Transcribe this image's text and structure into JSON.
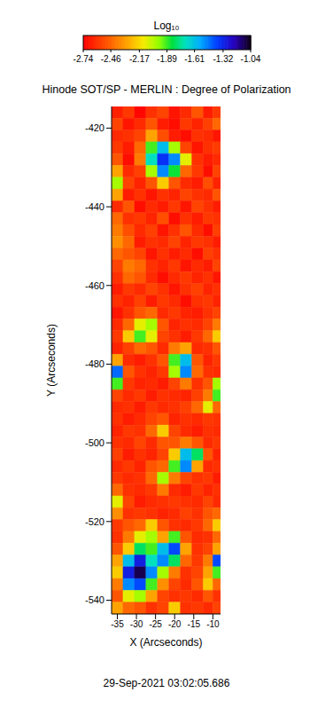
{
  "chart_data": {
    "type": "heatmap",
    "title": "Hinode SOT/SP - MERLIN : Degree of Polarization",
    "annotation": "29-Sep-2021 03:02:05.686",
    "x_label": "X (Arcseconds)",
    "y_label": "Y (Arcseconds)",
    "xlim": [
      -36.5,
      -8
    ],
    "ylim": [
      -543.5,
      -414.5
    ],
    "xticks": [
      -35,
      -30,
      -25,
      -20,
      -15,
      -10
    ],
    "yticks": [
      -420,
      -440,
      -460,
      -480,
      -500,
      -520,
      -540
    ],
    "x": [
      -35,
      -32,
      -29,
      -26,
      -23,
      -20,
      -17,
      -14,
      -11,
      -9
    ],
    "y": [
      -416,
      -419,
      -422,
      -425,
      -428,
      -431,
      -434,
      -437,
      -440,
      -443,
      -446,
      -449,
      -452,
      -455,
      -458,
      -461,
      -464,
      -467,
      -470,
      -473,
      -476,
      -479,
      -482,
      -485,
      -488,
      -491,
      -494,
      -497,
      -500,
      -503,
      -506,
      -509,
      -512,
      -515,
      -518,
      -521,
      -524,
      -527,
      -530,
      -533,
      -536,
      -539,
      -542
    ],
    "z": [
      [
        -2.65,
        -2.58,
        -2.72,
        -2.6,
        -2.55,
        -2.68,
        -2.62,
        -2.5,
        -2.66,
        -2.58
      ],
      [
        -2.55,
        -2.68,
        -2.62,
        -2.5,
        -2.66,
        -2.7,
        -2.58,
        -2.64,
        -2.56,
        -2.45
      ],
      [
        -2.62,
        -2.6,
        -2.55,
        -2.3,
        -2.52,
        -2.66,
        -2.7,
        -2.6,
        -2.62,
        -2.68
      ],
      [
        -2.58,
        -2.66,
        -2.45,
        -1.9,
        -1.6,
        -2.0,
        -2.55,
        -2.68,
        -2.6,
        -2.57
      ],
      [
        -2.5,
        -2.7,
        -2.4,
        -1.7,
        -1.35,
        -1.5,
        -2.1,
        -2.6,
        -2.66,
        -2.62
      ],
      [
        -2.3,
        -2.62,
        -2.56,
        -2.0,
        -1.5,
        -1.85,
        -2.45,
        -2.58,
        -2.7,
        -2.55
      ],
      [
        -2.0,
        -2.55,
        -2.64,
        -2.5,
        -2.2,
        -2.5,
        -2.62,
        -2.66,
        -2.52,
        -2.64
      ],
      [
        -2.3,
        -2.66,
        -2.6,
        -2.68,
        -2.6,
        -2.64,
        -2.55,
        -2.6,
        -2.62,
        -2.5
      ],
      [
        -2.62,
        -2.5,
        -2.7,
        -2.62,
        -2.66,
        -2.58,
        -2.68,
        -2.55,
        -2.6,
        -2.66
      ],
      [
        -2.45,
        -2.6,
        -2.58,
        -2.64,
        -2.52,
        -2.7,
        -2.6,
        -2.66,
        -2.58,
        -2.6
      ],
      [
        -2.4,
        -2.52,
        -2.62,
        -2.56,
        -2.68,
        -2.6,
        -2.5,
        -2.62,
        -2.7,
        -2.56
      ],
      [
        -2.35,
        -2.45,
        -2.66,
        -2.6,
        -2.62,
        -2.55,
        -2.64,
        -2.58,
        -2.6,
        -2.66
      ],
      [
        -2.45,
        -2.5,
        -2.55,
        -2.68,
        -2.6,
        -2.66,
        -2.62,
        -2.7,
        -2.56,
        -2.6
      ],
      [
        -2.55,
        -2.4,
        -2.45,
        -2.6,
        -2.64,
        -2.58,
        -2.68,
        -2.62,
        -2.66,
        -2.55
      ],
      [
        -2.6,
        -2.45,
        -2.5,
        -2.62,
        -2.7,
        -2.62,
        -2.58,
        -2.64,
        -2.6,
        -2.68
      ],
      [
        -2.66,
        -2.58,
        -2.62,
        -2.55,
        -2.6,
        -2.68,
        -2.6,
        -2.56,
        -2.64,
        -2.6
      ],
      [
        -2.6,
        -2.64,
        -2.56,
        -2.66,
        -2.58,
        -2.62,
        -2.7,
        -2.6,
        -2.58,
        -2.64
      ],
      [
        -2.68,
        -2.6,
        -2.5,
        -2.45,
        -2.62,
        -2.58,
        -2.64,
        -2.66,
        -2.6,
        -2.55
      ],
      [
        -2.62,
        -2.45,
        -2.1,
        -2.0,
        -2.5,
        -2.64,
        -2.6,
        -2.62,
        -2.55,
        -2.4
      ],
      [
        -2.58,
        -2.2,
        -1.9,
        -2.1,
        -2.55,
        -2.6,
        -2.66,
        -2.58,
        -2.45,
        -2.2
      ],
      [
        -2.64,
        -2.56,
        -2.45,
        -2.5,
        -2.62,
        -2.4,
        -2.3,
        -2.62,
        -2.6,
        -2.5
      ],
      [
        -2.3,
        -2.62,
        -2.66,
        -2.6,
        -2.5,
        -1.9,
        -1.6,
        -2.5,
        -2.64,
        -2.58
      ],
      [
        -1.45,
        -2.5,
        -2.6,
        -2.64,
        -2.58,
        -2.0,
        -1.5,
        -2.45,
        -2.6,
        -2.62
      ],
      [
        -1.9,
        -2.58,
        -2.64,
        -2.62,
        -2.66,
        -2.55,
        -2.4,
        -2.6,
        -2.5,
        -2.0
      ],
      [
        -2.55,
        -2.62,
        -2.58,
        -2.66,
        -2.6,
        -2.62,
        -2.64,
        -2.56,
        -2.4,
        -1.9
      ],
      [
        -2.62,
        -2.6,
        -2.66,
        -2.58,
        -2.62,
        -2.6,
        -2.56,
        -2.45,
        -2.1,
        -2.45
      ],
      [
        -2.6,
        -2.66,
        -2.62,
        -2.55,
        -2.5,
        -2.64,
        -2.6,
        -2.62,
        -2.58,
        -2.6
      ],
      [
        -2.64,
        -2.58,
        -2.6,
        -2.45,
        -2.2,
        -2.55,
        -2.62,
        -2.66,
        -2.6,
        -2.62
      ],
      [
        -2.6,
        -2.62,
        -2.55,
        -2.62,
        -2.5,
        -2.5,
        -2.4,
        -2.5,
        -2.62,
        -2.58
      ],
      [
        -2.56,
        -2.66,
        -2.6,
        -2.64,
        -2.55,
        -2.2,
        -1.6,
        -1.8,
        -2.5,
        -2.64
      ],
      [
        -2.62,
        -2.58,
        -2.64,
        -2.5,
        -2.45,
        -1.9,
        -1.5,
        -2.3,
        -2.62,
        -2.6
      ],
      [
        -2.58,
        -2.62,
        -2.6,
        -2.45,
        -2.0,
        -2.4,
        -2.55,
        -2.6,
        -2.58,
        -2.66
      ],
      [
        -2.45,
        -2.6,
        -2.62,
        -2.58,
        -2.4,
        -2.62,
        -2.66,
        -2.58,
        -2.64,
        -2.6
      ],
      [
        -2.1,
        -2.55,
        -2.66,
        -2.62,
        -2.6,
        -2.58,
        -2.6,
        -2.62,
        -2.55,
        -2.62
      ],
      [
        -2.35,
        -2.6,
        -2.58,
        -2.6,
        -2.64,
        -2.62,
        -2.56,
        -2.6,
        -2.5,
        -2.45
      ],
      [
        -2.58,
        -2.5,
        -2.45,
        -2.2,
        -2.5,
        -2.6,
        -2.62,
        -2.58,
        -2.45,
        -2.2
      ],
      [
        -2.6,
        -2.4,
        -2.1,
        -2.0,
        -2.3,
        -1.9,
        -2.5,
        -2.62,
        -2.6,
        -2.45
      ],
      [
        -2.5,
        -2.2,
        -1.8,
        -1.9,
        -1.6,
        -1.4,
        -2.3,
        -2.6,
        -2.55,
        -2.3
      ],
      [
        -2.3,
        -1.6,
        -1.3,
        -1.7,
        -1.5,
        -1.8,
        -2.45,
        -2.58,
        -2.4,
        -1.4
      ],
      [
        -2.2,
        -1.3,
        -1.1,
        -1.5,
        -2.0,
        -2.4,
        -2.6,
        -2.55,
        -2.3,
        -1.9
      ],
      [
        -2.4,
        -1.5,
        -1.4,
        -1.9,
        -2.35,
        -2.55,
        -2.62,
        -2.5,
        -2.2,
        -2.45
      ],
      [
        -2.5,
        -2.1,
        -2.0,
        -2.3,
        -2.55,
        -2.6,
        -2.58,
        -2.62,
        -2.5,
        -2.6
      ],
      [
        -2.3,
        -2.45,
        -2.5,
        -2.6,
        -2.55,
        -2.2,
        -2.6,
        -2.58,
        -2.62,
        -2.55
      ]
    ],
    "colorbar": {
      "label": "Log₁₀",
      "range": [
        -2.74,
        -1.04
      ],
      "ticks": [
        -2.74,
        -2.46,
        -2.17,
        -1.89,
        -1.61,
        -1.32,
        -1.04
      ]
    }
  }
}
